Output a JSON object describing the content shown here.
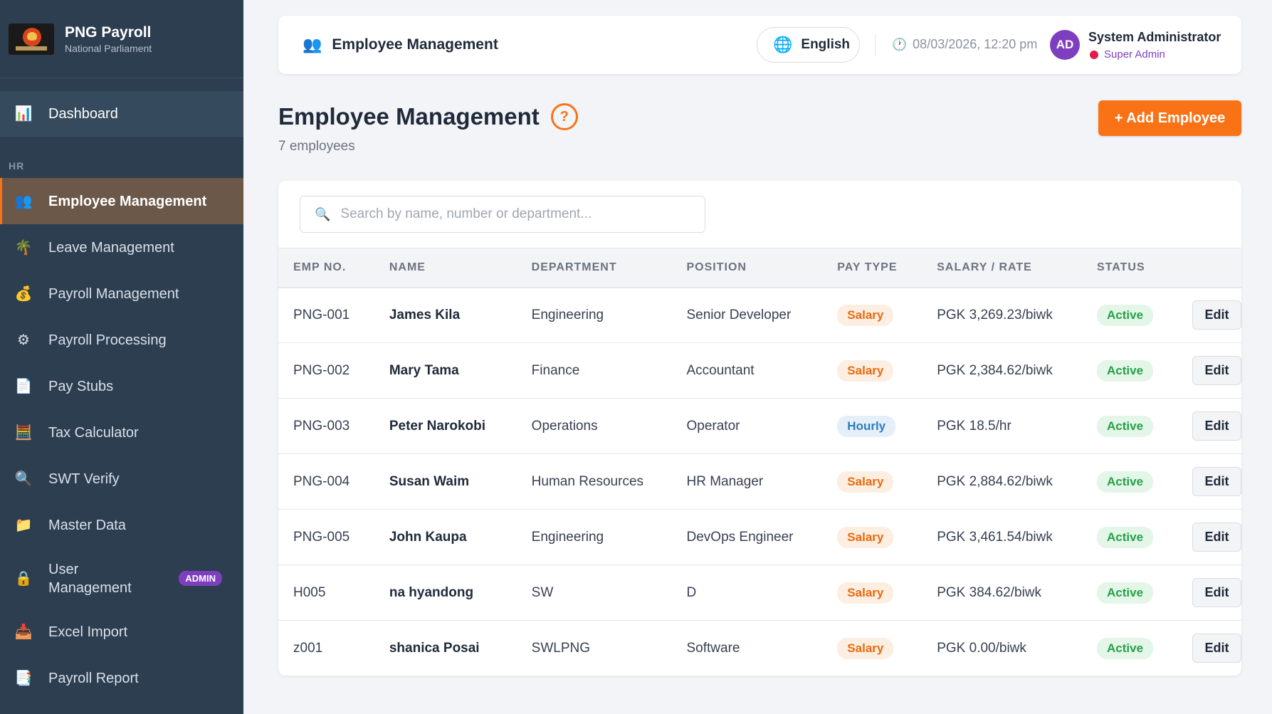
{
  "brand": {
    "title": "PNG Payroll",
    "subtitle": "National Parliament"
  },
  "sidebar": {
    "dashboard": {
      "label": "Dashboard",
      "icon": "bar-chart-icon"
    },
    "section_label": "HR",
    "items": [
      {
        "label": "Employee Management",
        "icon": "people-icon",
        "glyph": "👥",
        "active": true
      },
      {
        "label": "Leave Management",
        "icon": "palm-tree-icon",
        "glyph": "🌴"
      },
      {
        "label": "Payroll Management",
        "icon": "money-bag-icon",
        "glyph": "💰"
      },
      {
        "label": "Payroll Processing",
        "icon": "gear-icon",
        "glyph": "⚙"
      },
      {
        "label": "Pay Stubs",
        "icon": "document-icon",
        "glyph": "📄"
      },
      {
        "label": "Tax Calculator",
        "icon": "calculator-icon",
        "glyph": "🧮"
      },
      {
        "label": "SWT Verify",
        "icon": "magnifier-icon",
        "glyph": "🔍"
      },
      {
        "label": "Master Data",
        "icon": "folder-icon",
        "glyph": "📁"
      },
      {
        "label": "User Management",
        "icon": "lock-icon",
        "glyph": "🔒",
        "badge": "ADMIN"
      },
      {
        "label": "Excel Import",
        "icon": "inbox-icon",
        "glyph": "📥"
      },
      {
        "label": "Payroll Report",
        "icon": "report-icon",
        "glyph": "📑"
      }
    ]
  },
  "topbar": {
    "title": "Employee Management",
    "language": "English",
    "datetime": "08/03/2026, 12:20 pm",
    "avatar_initials": "AD",
    "user_name": "System Administrator",
    "user_role": "Super Admin"
  },
  "page": {
    "title": "Employee Management",
    "help": "?",
    "count": "7 employees",
    "add_button": "+ Add Employee"
  },
  "search": {
    "placeholder": "Search by name, number or department..."
  },
  "table": {
    "headers": [
      "EMP NO.",
      "NAME",
      "DEPARTMENT",
      "POSITION",
      "PAY TYPE",
      "SALARY / RATE",
      "STATUS",
      ""
    ],
    "edit_label": "Edit",
    "rows": [
      {
        "emp_no": "PNG-001",
        "name": "James Kila",
        "department": "Engineering",
        "position": "Senior Developer",
        "pay_type": "Salary",
        "salary": "PGK 3,269.23/biwk",
        "status": "Active"
      },
      {
        "emp_no": "PNG-002",
        "name": "Mary Tama",
        "department": "Finance",
        "position": "Accountant",
        "pay_type": "Salary",
        "salary": "PGK 2,384.62/biwk",
        "status": "Active"
      },
      {
        "emp_no": "PNG-003",
        "name": "Peter Narokobi",
        "department": "Operations",
        "position": "Operator",
        "pay_type": "Hourly",
        "salary": "PGK 18.5/hr",
        "status": "Active"
      },
      {
        "emp_no": "PNG-004",
        "name": "Susan Waim",
        "department": "Human Resources",
        "position": "HR Manager",
        "pay_type": "Salary",
        "salary": "PGK 2,884.62/biwk",
        "status": "Active"
      },
      {
        "emp_no": "PNG-005",
        "name": "John Kaupa",
        "department": "Engineering",
        "position": "DevOps Engineer",
        "pay_type": "Salary",
        "salary": "PGK 3,461.54/biwk",
        "status": "Active"
      },
      {
        "emp_no": "H005",
        "name": "na hyandong",
        "department": "SW",
        "position": "D",
        "pay_type": "Salary",
        "salary": "PGK 384.62/biwk",
        "status": "Active"
      },
      {
        "emp_no": "z001",
        "name": "shanica Posai",
        "department": "SWLPNG",
        "position": "Software",
        "pay_type": "Salary",
        "salary": "PGK 0.00/biwk",
        "status": "Active"
      }
    ]
  },
  "colors": {
    "sidebar_bg": "#2c3e50",
    "active_item_bg": "#6b5849",
    "accent": "#f97316",
    "admin_purple": "#7e3fbf",
    "status_green": "#27a047",
    "hourly_blue": "#2f7bbf"
  }
}
